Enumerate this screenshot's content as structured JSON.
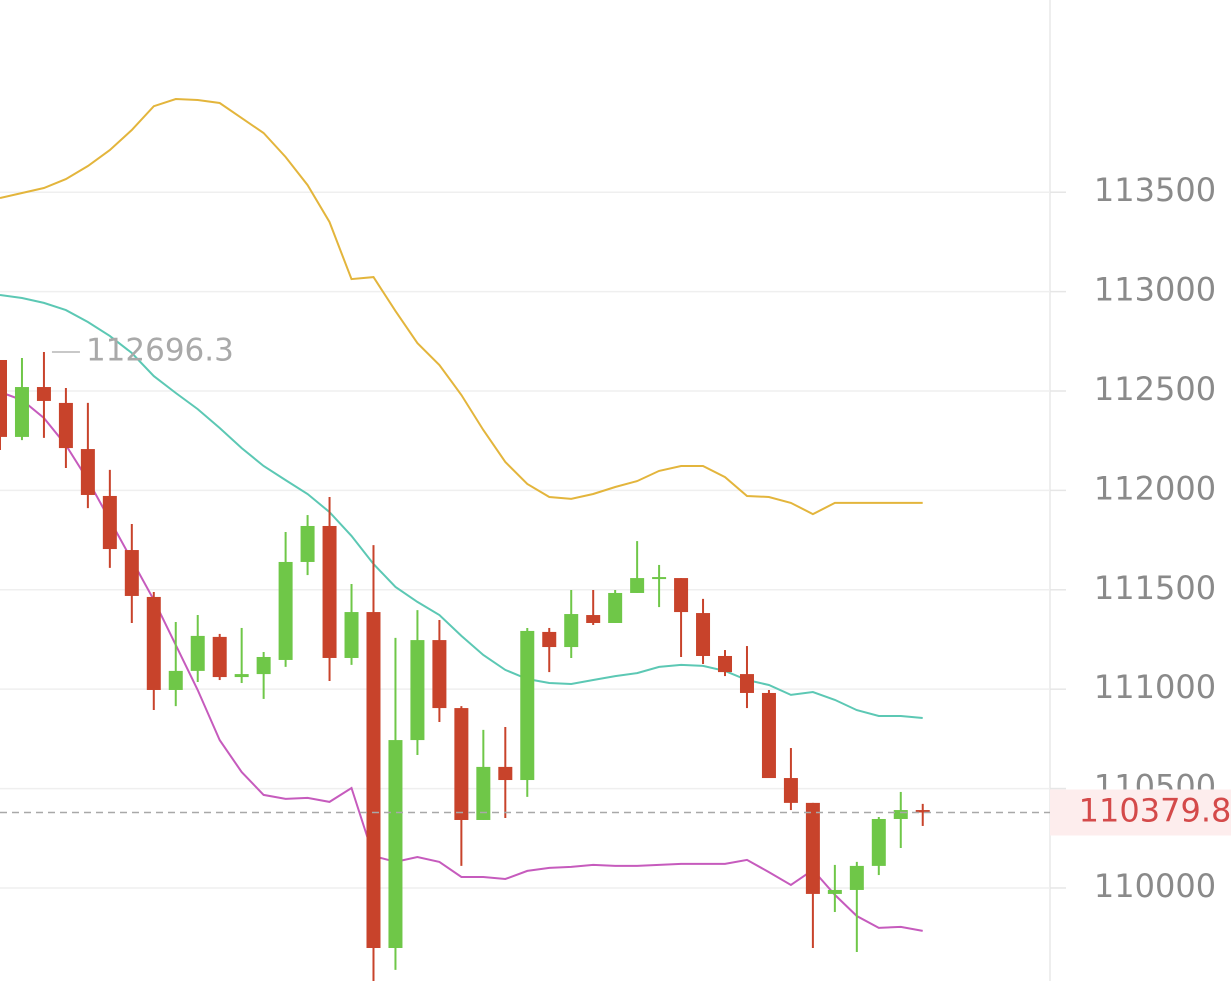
{
  "chart_data": {
    "type": "candlestick",
    "up_color": "#6fc748",
    "down_color": "#c8432b",
    "open": [
      112656,
      112269,
      112520,
      112440,
      112208,
      111972,
      111700,
      111464,
      110996,
      111092,
      111263,
      111061,
      111076,
      111147,
      111640,
      111821,
      111157,
      111388,
      109698,
      110744,
      111247,
      110905,
      110342,
      110609,
      110543,
      111288,
      111212,
      111373,
      111333,
      111484,
      111559,
      111559,
      111383,
      111167,
      111076,
      110981,
      110553,
      110428,
      109970,
      109990,
      110111,
      110347,
      110392
    ],
    "high": [
      112656,
      112666,
      112696.3,
      112515,
      112440,
      112103,
      111831,
      111489,
      111338,
      111373,
      111278,
      111308,
      111187,
      111791,
      111876,
      111967,
      111529,
      111725,
      111258,
      111398,
      111348,
      110915,
      110795,
      110810,
      111308,
      111308,
      111499,
      111499,
      111499,
      111745,
      111625,
      111559,
      111454,
      111197,
      111217,
      110996,
      110704,
      110428,
      110116,
      110131,
      110357,
      110483,
      110423
    ],
    "low": [
      112203,
      112253,
      112264,
      112113,
      111911,
      111610,
      111333,
      110895,
      110915,
      111036,
      111046,
      111031,
      110951,
      111112,
      111574,
      111041,
      111122,
      109532,
      109588,
      110669,
      110835,
      110111,
      110342,
      110352,
      110458,
      111086,
      111157,
      111323,
      111333,
      111484,
      111413,
      111162,
      111127,
      111066,
      110905,
      110553,
      110392,
      109698,
      109879,
      109678,
      110065,
      110201,
      110312
    ],
    "close": [
      112269,
      112520,
      112450,
      112213,
      111977,
      111705,
      111469,
      110996,
      111092,
      111268,
      111061,
      111076,
      111162,
      111640,
      111821,
      111157,
      111388,
      109698,
      110744,
      111247,
      110905,
      110342,
      110609,
      110543,
      111293,
      111212,
      111378,
      111333,
      111484,
      111559,
      111564,
      111388,
      111167,
      111086,
      110981,
      110553,
      110428,
      109970,
      109990,
      110111,
      110347,
      110392,
      110379.8
    ],
    "lines": [
      {
        "color": "#e3b53c",
        "values": [
          113471,
          113496,
          113521,
          113566,
          113632,
          113712,
          113813,
          113933,
          113969,
          113964,
          113949,
          113873,
          113798,
          113677,
          113536,
          113350,
          113063,
          113073,
          112902,
          112741,
          112631,
          112480,
          112304,
          112143,
          112032,
          111967,
          111957,
          111982,
          112017,
          112047,
          112098,
          112123,
          112123,
          112067,
          111972,
          111967,
          111937,
          111881,
          111937,
          111937,
          111937,
          111937,
          111937
        ]
      },
      {
        "color": "#5cc8b4",
        "values": [
          112983,
          112968,
          112943,
          112907,
          112847,
          112777,
          112691,
          112575,
          112490,
          112409,
          112314,
          112213,
          112123,
          112052,
          111982,
          111891,
          111771,
          111630,
          111514,
          111439,
          111373,
          111268,
          111172,
          111097,
          111051,
          111031,
          111026,
          111046,
          111066,
          111081,
          111112,
          111122,
          111117,
          111092,
          111046,
          111021,
          110971,
          110986,
          110946,
          110895,
          110865,
          110865,
          110855
        ]
      },
      {
        "color": "#c65bbd",
        "values": [
          112495,
          112455,
          112364,
          112228,
          112052,
          111851,
          111650,
          111449,
          111222,
          110996,
          110744,
          110583,
          110468,
          110448,
          110453,
          110433,
          110503,
          110161,
          110131,
          110156,
          110131,
          110055,
          110055,
          110045,
          110086,
          110101,
          110106,
          110116,
          110111,
          110111,
          110116,
          110121,
          110121,
          110121,
          110141,
          110080,
          110015,
          110091,
          109965,
          109859,
          109799,
          109804,
          109784
        ]
      }
    ],
    "ylim": [
      109532,
      114467
    ],
    "yticks": [
      110000,
      110500,
      111000,
      111500,
      112000,
      112500,
      113000,
      113500
    ],
    "grid": true
  }
}
